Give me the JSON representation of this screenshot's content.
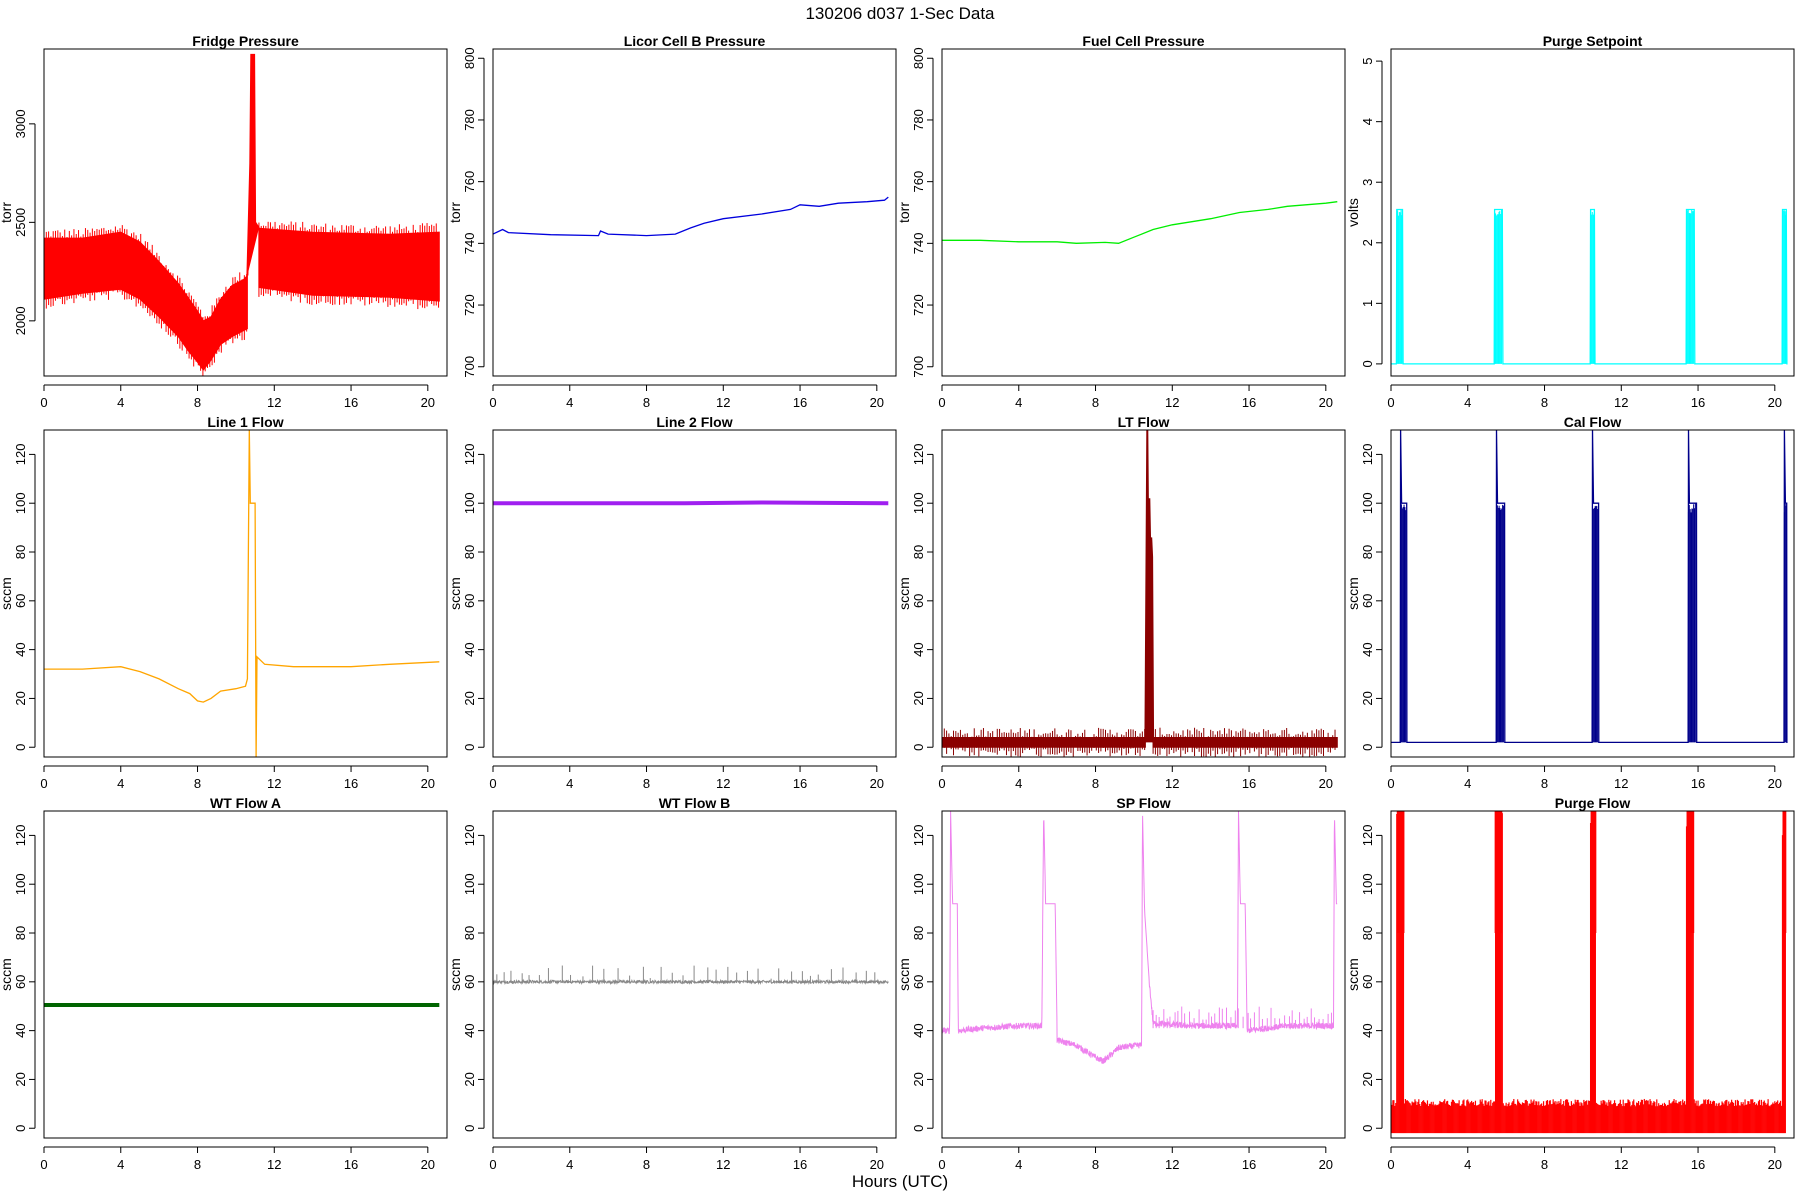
{
  "figure": {
    "title": "130206   d037   1-Sec Data",
    "xlabel": "Hours (UTC)"
  },
  "chart_data": [
    {
      "type": "line",
      "title": "Fridge Pressure",
      "ylabel": "torr",
      "color": "#ff0000",
      "xlim": [
        0,
        21
      ],
      "ylim": [
        1720,
        3380
      ],
      "xticks": [
        0,
        4,
        8,
        12,
        16,
        20
      ],
      "yticks": [
        2000,
        2500,
        3000
      ],
      "style": "band",
      "upper": [
        [
          0.0,
          2420
        ],
        [
          2.0,
          2420
        ],
        [
          4.0,
          2450
        ],
        [
          5.0,
          2400
        ],
        [
          6.0,
          2300
        ],
        [
          7.0,
          2190
        ],
        [
          7.5,
          2120
        ],
        [
          8.0,
          2050
        ],
        [
          8.3,
          2000
        ],
        [
          8.7,
          2020
        ],
        [
          9.2,
          2110
        ],
        [
          9.8,
          2180
        ],
        [
          10.4,
          2210
        ],
        [
          10.6,
          2230
        ]
      ],
      "lower": [
        [
          0.0,
          2110
        ],
        [
          2.0,
          2140
        ],
        [
          4.0,
          2160
        ],
        [
          5.0,
          2110
        ],
        [
          6.0,
          2020
        ],
        [
          7.0,
          1920
        ],
        [
          7.5,
          1850
        ],
        [
          8.0,
          1790
        ],
        [
          8.3,
          1750
        ],
        [
          8.7,
          1800
        ],
        [
          9.2,
          1880
        ],
        [
          9.8,
          1920
        ],
        [
          10.4,
          1950
        ],
        [
          10.6,
          1960
        ]
      ],
      "upper2": [
        [
          11.2,
          2470
        ],
        [
          14.0,
          2450
        ],
        [
          18.0,
          2440
        ],
        [
          20.6,
          2450
        ]
      ],
      "lower2": [
        [
          11.2,
          2170
        ],
        [
          14.0,
          2130
        ],
        [
          18.0,
          2120
        ],
        [
          20.6,
          2100
        ]
      ],
      "spike": [
        [
          10.6,
          2230
        ],
        [
          10.75,
          2800
        ],
        [
          10.8,
          3350
        ],
        [
          10.95,
          3350
        ],
        [
          11.0,
          2500
        ],
        [
          11.2,
          2470
        ]
      ]
    },
    {
      "type": "line",
      "title": "Licor Cell B Pressure",
      "ylabel": "torr",
      "color": "#0000dd",
      "xlim": [
        0,
        21
      ],
      "ylim": [
        697,
        803
      ],
      "xticks": [
        0,
        4,
        8,
        12,
        16,
        20
      ],
      "yticks": [
        700,
        720,
        740,
        760,
        780,
        800
      ],
      "style": "line",
      "points": [
        [
          0,
          743
        ],
        [
          0.5,
          744.5
        ],
        [
          0.8,
          743.5
        ],
        [
          3,
          742.8
        ],
        [
          5.5,
          742.5
        ],
        [
          5.6,
          744
        ],
        [
          6,
          743
        ],
        [
          8,
          742.5
        ],
        [
          9.5,
          743
        ],
        [
          10.3,
          745
        ],
        [
          11,
          746.5
        ],
        [
          12,
          748
        ],
        [
          14,
          749.5
        ],
        [
          15.5,
          751
        ],
        [
          16,
          752.5
        ],
        [
          17,
          752
        ],
        [
          18,
          753
        ],
        [
          19.5,
          753.5
        ],
        [
          20.4,
          754
        ],
        [
          20.6,
          755
        ]
      ]
    },
    {
      "type": "line",
      "title": "Fuel Cell Pressure",
      "ylabel": "torr",
      "color": "#00ee00",
      "xlim": [
        0,
        21
      ],
      "ylim": [
        697,
        803
      ],
      "xticks": [
        0,
        4,
        8,
        12,
        16,
        20
      ],
      "yticks": [
        700,
        720,
        740,
        760,
        780,
        800
      ],
      "style": "line",
      "points": [
        [
          0,
          741
        ],
        [
          2,
          741
        ],
        [
          4,
          740.5
        ],
        [
          6,
          740.5
        ],
        [
          7,
          740
        ],
        [
          8.5,
          740.3
        ],
        [
          9.2,
          740
        ],
        [
          10,
          742
        ],
        [
          11,
          744.5
        ],
        [
          12,
          746
        ],
        [
          14,
          748
        ],
        [
          15.5,
          750
        ],
        [
          17,
          751
        ],
        [
          18,
          752
        ],
        [
          20,
          753
        ],
        [
          20.6,
          753.5
        ]
      ]
    },
    {
      "type": "line",
      "title": "Purge Setpoint",
      "ylabel": "volts",
      "color": "#00ffff",
      "xlim": [
        0,
        21
      ],
      "ylim": [
        -0.2,
        5.2
      ],
      "xticks": [
        0,
        4,
        8,
        12,
        16,
        20
      ],
      "yticks": [
        0,
        1,
        2,
        3,
        4,
        5
      ],
      "style": "pulses",
      "baseline": 0,
      "pulse_value": 2.55,
      "pulses": [
        [
          0.3,
          0.6
        ],
        [
          5.4,
          5.8
        ],
        [
          10.4,
          10.6
        ],
        [
          15.4,
          15.8
        ],
        [
          20.4,
          20.6
        ]
      ]
    },
    {
      "type": "line",
      "title": "Line 1 Flow",
      "ylabel": "sccm",
      "color": "#ffa500",
      "xlim": [
        0,
        21
      ],
      "ylim": [
        -4,
        130
      ],
      "xticks": [
        0,
        4,
        8,
        12,
        16,
        20
      ],
      "yticks": [
        0,
        20,
        40,
        60,
        80,
        100,
        120
      ],
      "style": "line",
      "points": [
        [
          0,
          32
        ],
        [
          2,
          32
        ],
        [
          4,
          33
        ],
        [
          5,
          31
        ],
        [
          6,
          28
        ],
        [
          7,
          24
        ],
        [
          7.6,
          22
        ],
        [
          8,
          19
        ],
        [
          8.3,
          18.5
        ],
        [
          8.7,
          20
        ],
        [
          9.2,
          23
        ],
        [
          10,
          24
        ],
        [
          10.5,
          25
        ],
        [
          10.6,
          28
        ],
        [
          10.7,
          130
        ],
        [
          10.75,
          100
        ],
        [
          11.0,
          100
        ],
        [
          11.05,
          -4
        ],
        [
          11.1,
          37
        ],
        [
          11.5,
          34
        ],
        [
          13,
          33
        ],
        [
          16,
          33
        ],
        [
          18,
          34
        ],
        [
          20.6,
          35
        ]
      ]
    },
    {
      "type": "line",
      "title": "Line 2 Flow",
      "ylabel": "sccm",
      "color": "#a020f0",
      "xlim": [
        0,
        21
      ],
      "ylim": [
        -4,
        130
      ],
      "xticks": [
        0,
        4,
        8,
        12,
        16,
        20
      ],
      "yticks": [
        0,
        20,
        40,
        60,
        80,
        100,
        120
      ],
      "style": "thick",
      "points": [
        [
          0,
          100
        ],
        [
          10,
          100
        ],
        [
          14,
          100.3
        ],
        [
          20.6,
          100
        ]
      ]
    },
    {
      "type": "line",
      "title": "LT Flow",
      "ylabel": "sccm",
      "color": "#8b0000",
      "xlim": [
        0,
        21
      ],
      "ylim": [
        -4,
        130
      ],
      "xticks": [
        0,
        4,
        8,
        12,
        16,
        20
      ],
      "yticks": [
        0,
        20,
        40,
        60,
        80,
        100,
        120
      ],
      "style": "band",
      "upper": [
        [
          0,
          4
        ],
        [
          10.6,
          4
        ]
      ],
      "lower": [
        [
          0,
          0
        ],
        [
          10.6,
          0
        ]
      ],
      "upper2": [
        [
          11.0,
          4
        ],
        [
          20.6,
          4
        ]
      ],
      "lower2": [
        [
          11.0,
          0
        ],
        [
          20.6,
          0
        ]
      ],
      "spike": [
        [
          10.6,
          2
        ],
        [
          10.7,
          130
        ],
        [
          10.75,
          80
        ],
        [
          10.8,
          102
        ],
        [
          10.85,
          82
        ],
        [
          10.9,
          86
        ],
        [
          10.95,
          78
        ],
        [
          11.0,
          2
        ]
      ]
    },
    {
      "type": "line",
      "title": "Cal Flow",
      "ylabel": "sccm",
      "color": "#00008b",
      "xlim": [
        0,
        21
      ],
      "ylim": [
        -4,
        130
      ],
      "xticks": [
        0,
        4,
        8,
        12,
        16,
        20
      ],
      "yticks": [
        0,
        20,
        40,
        60,
        80,
        100,
        120
      ],
      "style": "pulses",
      "baseline": 2,
      "pulse_value": 100,
      "overshoot": 130,
      "pulses": [
        [
          0.5,
          0.8
        ],
        [
          5.5,
          5.9
        ],
        [
          10.5,
          10.8
        ],
        [
          15.5,
          15.9
        ],
        [
          20.5,
          20.6
        ]
      ]
    },
    {
      "type": "line",
      "title": "WT Flow A",
      "ylabel": "sccm",
      "color": "#006400",
      "xlim": [
        0,
        21
      ],
      "ylim": [
        -4,
        130
      ],
      "xticks": [
        0,
        4,
        8,
        12,
        16,
        20
      ],
      "yticks": [
        0,
        20,
        40,
        60,
        80,
        100,
        120
      ],
      "style": "thick",
      "points": [
        [
          0,
          50.5
        ],
        [
          20.6,
          50.5
        ]
      ]
    },
    {
      "type": "line",
      "title": "WT Flow B",
      "ylabel": "sccm",
      "color": "#888888",
      "xlim": [
        0,
        21
      ],
      "ylim": [
        -4,
        130
      ],
      "xticks": [
        0,
        4,
        8,
        12,
        16,
        20
      ],
      "yticks": [
        0,
        20,
        40,
        60,
        80,
        100,
        120
      ],
      "style": "noisy",
      "points": [
        [
          0,
          60
        ],
        [
          20.6,
          60
        ]
      ],
      "noise": 1.2,
      "spikes_max": 67
    },
    {
      "type": "line",
      "title": "SP Flow",
      "ylabel": "sccm",
      "color": "#ee82ee",
      "xlim": [
        0,
        21
      ],
      "ylim": [
        -4,
        130
      ],
      "xticks": [
        0,
        4,
        8,
        12,
        16,
        20
      ],
      "yticks": [
        0,
        20,
        40,
        60,
        80,
        100,
        120
      ],
      "style": "sp",
      "points": [
        [
          0,
          40
        ],
        [
          0.4,
          40
        ],
        [
          0.45,
          130
        ],
        [
          0.55,
          92
        ],
        [
          0.8,
          92
        ],
        [
          0.85,
          40
        ],
        [
          2,
          41
        ],
        [
          4,
          42
        ],
        [
          5.2,
          42
        ],
        [
          5.3,
          130
        ],
        [
          5.4,
          92
        ],
        [
          5.9,
          92
        ],
        [
          6,
          36
        ],
        [
          7,
          34
        ],
        [
          7.6,
          31
        ],
        [
          8,
          29
        ],
        [
          8.4,
          27.5
        ],
        [
          8.8,
          30
        ],
        [
          9.2,
          33
        ],
        [
          10.3,
          34
        ],
        [
          10.4,
          34
        ],
        [
          10.45,
          130
        ],
        [
          10.55,
          90
        ],
        [
          10.8,
          60
        ],
        [
          11,
          43
        ],
        [
          13,
          42
        ],
        [
          15.4,
          42
        ],
        [
          15.45,
          130
        ],
        [
          15.55,
          92
        ],
        [
          15.8,
          92
        ],
        [
          15.9,
          40
        ],
        [
          18,
          42
        ],
        [
          20.4,
          42
        ],
        [
          20.45,
          130
        ],
        [
          20.55,
          92
        ]
      ],
      "noise": 2.5
    },
    {
      "type": "line",
      "title": "Purge Flow",
      "ylabel": "sccm",
      "color": "#ff0000",
      "xlim": [
        0,
        21
      ],
      "ylim": [
        -4,
        130
      ],
      "xticks": [
        0,
        4,
        8,
        12,
        16,
        20
      ],
      "yticks": [
        0,
        20,
        40,
        60,
        80,
        100,
        120
      ],
      "style": "purge",
      "baseline_low": -2,
      "baseline_high": 12,
      "pulses": [
        [
          0.3,
          0.7
        ],
        [
          5.4,
          5.8
        ],
        [
          10.4,
          10.7
        ],
        [
          15.4,
          15.8
        ],
        [
          20.4,
          20.6
        ]
      ],
      "pulse_high": 130,
      "pulse_mid": 80
    }
  ]
}
